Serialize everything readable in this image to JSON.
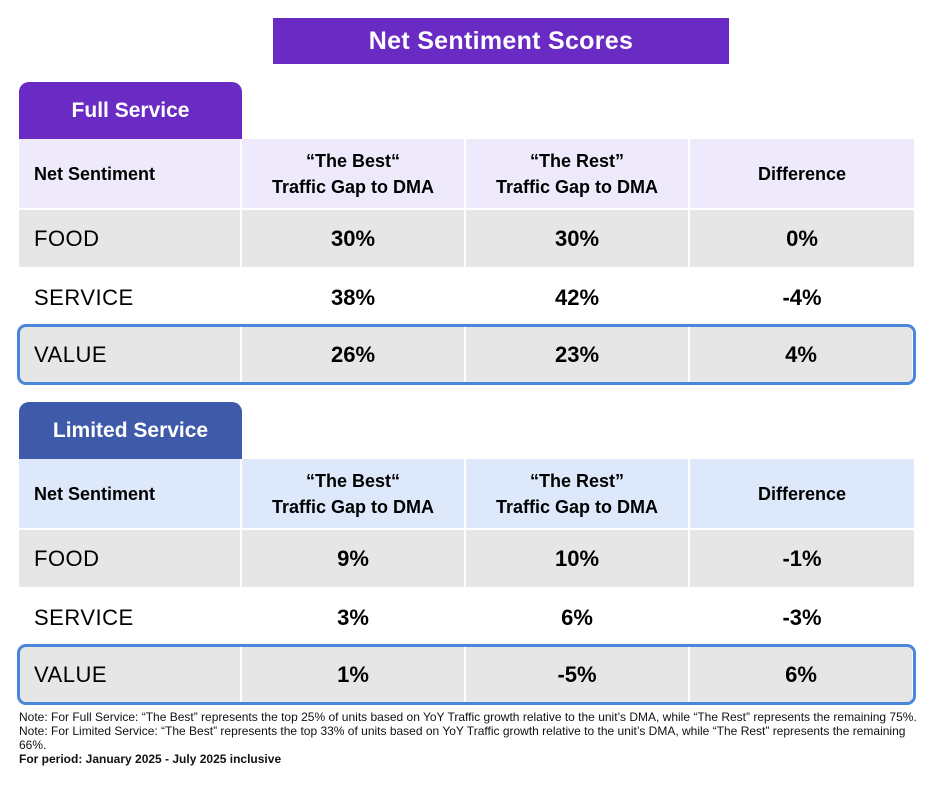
{
  "title": "Net Sentiment Scores",
  "header_labels": {
    "col0": "Net Sentiment",
    "col1_line1": "“The Best“",
    "col1_line2": "Traffic Gap to DMA",
    "col2_line1": "“The Rest”",
    "col2_line2": "Traffic Gap to DMA",
    "col3": "Difference"
  },
  "full_service": {
    "tab": "Full Service",
    "rows": [
      {
        "label": "FOOD",
        "best": "30%",
        "rest": "30%",
        "diff": "0%"
      },
      {
        "label": "SERVICE",
        "best": "38%",
        "rest": "42%",
        "diff": "-4%"
      },
      {
        "label": "VALUE",
        "best": "26%",
        "rest": "23%",
        "diff": "4%"
      }
    ]
  },
  "limited_service": {
    "tab": "Limited Service",
    "rows": [
      {
        "label": "FOOD",
        "best": "9%",
        "rest": "10%",
        "diff": "-1%"
      },
      {
        "label": "SERVICE",
        "best": "3%",
        "rest": "6%",
        "diff": "-3%"
      },
      {
        "label": "VALUE",
        "best": "1%",
        "rest": "-5%",
        "diff": "6%"
      }
    ]
  },
  "notes": {
    "full": "Note: For Full Service: “The Best” represents the top 25% of units based on YoY Traffic growth relative to the unit’s DMA, while “The Rest” represents the remaining 75%.",
    "limited": "Note: For Limited Service: “The Best” represents the top 33% of units based on YoY Traffic growth relative to the unit’s DMA, while “The Rest” represents the remaining 66%.",
    "period": "For period: January 2025 - July 2025 inclusive"
  },
  "colors": {
    "purple": "#6a2bc4",
    "blue_tab": "#3f5aa8",
    "highlight_border": "#4a86d9",
    "full_header_bg": "#efeafb",
    "limited_header_bg": "#dde8fa",
    "shaded_row": "#e6e6e6"
  }
}
